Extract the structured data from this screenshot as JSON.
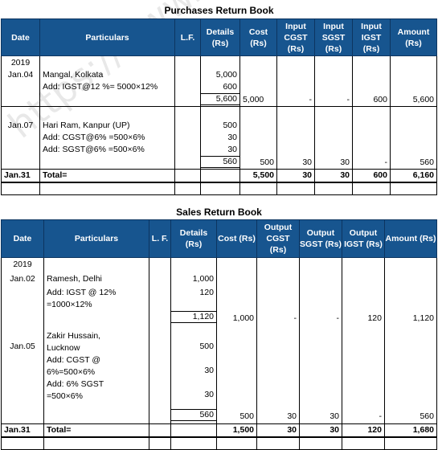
{
  "purchases": {
    "title": "Purchases Return Book",
    "headers": [
      "Date",
      "Particulars",
      "L.F.",
      "Details (Rs)",
      "Cost (Rs)",
      "Input CGST (Rs)",
      "Input SGST (Rs)",
      "Input IGST (Rs)",
      "Amount (Rs)"
    ],
    "year": "2019",
    "entry1": {
      "date": "Jan.04",
      "p1": "Mangal, Kolkata",
      "p2": "Add: IGST@12 %= 5000×12%",
      "d1": "5,000",
      "d2": "600",
      "dsum": "5,600",
      "cost": "5,000",
      "cgst": "-",
      "sgst": "-",
      "igst": "600",
      "amount": "5,600"
    },
    "entry2": {
      "date": "Jan.07",
      "p1": "Hari Ram, Kanpur (UP)",
      "p2": "Add: CGST@6% =500×6%",
      "p3": "Add: SGST@6% =500×6%",
      "d1": "500",
      "d2": "30",
      "d3": "30",
      "dsum": "560",
      "cost": "500",
      "cgst": "30",
      "sgst": "30",
      "igst": "-",
      "amount": "560"
    },
    "total": {
      "date": "Jan.31",
      "label": "Total=",
      "cost": "5,500",
      "cgst": "30",
      "sgst": "30",
      "igst": "600",
      "amount": "6,160"
    }
  },
  "sales": {
    "title": "Sales Return Book",
    "headers": [
      "Date",
      "Particulars",
      "L. F.",
      "Details (Rs)",
      "Cost (Rs)",
      "Output CGST (Rs)",
      "Output SGST (Rs)",
      "Output IGST (Rs)",
      "Amount (Rs)"
    ],
    "year": "2019",
    "entry1": {
      "date": "Jan.02",
      "p1": "Ramesh, Delhi",
      "p2": "Add: IGST @ 12%",
      "p3": "=1000×12%",
      "d1": "1,000",
      "d2": "120",
      "dsum": "1,120",
      "cost": "1,000",
      "cgst": "-",
      "sgst": "-",
      "igst": "120",
      "amount": "1,120"
    },
    "entry2": {
      "date": "Jan.05",
      "p1": "Zakir Hussain,",
      "p2": "Lucknow",
      "p3": "Add: CGST @",
      "p4": "6%=500×6%",
      "p5": "Add: 6% SGST",
      "p6": "=500×6%",
      "d1": "500",
      "d2": "30",
      "d3": "30",
      "dsum": "560",
      "cost": "500",
      "cgst": "30",
      "sgst": "30",
      "igst": "-",
      "amount": "560"
    },
    "total": {
      "date": "Jan.31",
      "label": "Total=",
      "cost": "1,500",
      "cgst": "30",
      "sgst": "30",
      "igst": "120",
      "amount": "1,680"
    }
  },
  "watermark": "https://www.studiestoday"
}
